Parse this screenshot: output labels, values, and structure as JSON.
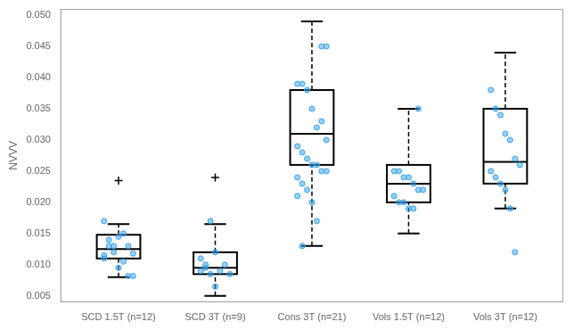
{
  "chart_data": {
    "type": "box",
    "y_label": "NVVV",
    "categories": [
      "SCD 1.5T (n=12)",
      "SCD 3T (n=9)",
      "Cons 3T (n=21)",
      "Vols 1.5T (n=12)",
      "Vols 3T (n=12)"
    ],
    "boxes": [
      {
        "q1": 0.011,
        "median": 0.0125,
        "q3": 0.0148,
        "whisker_low": 0.008,
        "whisker_high": 0.0165,
        "fliers": [
          0.0235
        ],
        "points": [
          0.0115,
          0.013,
          0.012,
          0.0145,
          0.0105,
          0.013,
          0.0118,
          0.011,
          0.014,
          0.013,
          0.0095,
          0.015,
          0.0082,
          0.0082,
          0.017
        ]
      },
      {
        "q1": 0.0085,
        "median": 0.0095,
        "q3": 0.012,
        "whisker_low": 0.005,
        "whisker_high": 0.0165,
        "fliers": [
          0.024
        ],
        "points": [
          0.009,
          0.01,
          0.0085,
          0.012,
          0.009,
          0.01,
          0.0085,
          0.011,
          0.0095,
          0.017,
          0.0065
        ]
      },
      {
        "q1": 0.026,
        "median": 0.031,
        "q3": 0.038,
        "whisker_low": 0.013,
        "whisker_high": 0.049,
        "fliers": [],
        "points": [
          0.039,
          0.039,
          0.038,
          0.035,
          0.032,
          0.033,
          0.03,
          0.029,
          0.028,
          0.027,
          0.026,
          0.026,
          0.025,
          0.025,
          0.024,
          0.023,
          0.022,
          0.02,
          0.017,
          0.045,
          0.045,
          0.021,
          0.013
        ]
      },
      {
        "q1": 0.02,
        "median": 0.023,
        "q3": 0.026,
        "whisker_low": 0.015,
        "whisker_high": 0.035,
        "fliers": [],
        "points": [
          0.025,
          0.025,
          0.024,
          0.024,
          0.023,
          0.022,
          0.022,
          0.021,
          0.02,
          0.02,
          0.019,
          0.019,
          0.035
        ]
      },
      {
        "q1": 0.023,
        "median": 0.0265,
        "q3": 0.035,
        "whisker_low": 0.019,
        "whisker_high": 0.044,
        "fliers": [],
        "points": [
          0.038,
          0.035,
          0.034,
          0.031,
          0.03,
          0.027,
          0.026,
          0.025,
          0.024,
          0.023,
          0.022,
          0.019,
          0.012
        ]
      }
    ],
    "color": "#000000",
    "ylim": [
      0.004,
      0.051
    ],
    "yticks": [
      0.005,
      {
        "value": 0.01,
        "label": "0.010"
      },
      0.015,
      {
        "value": 0.02,
        "label": "0.020"
      },
      0.025,
      {
        "value": 0.03,
        "label": "0.030"
      },
      0.035,
      {
        "value": 0.04,
        "label": "0.040"
      },
      0.045,
      {
        "value": 0.05,
        "label": "0.050"
      }
    ],
    "grid": false
  }
}
